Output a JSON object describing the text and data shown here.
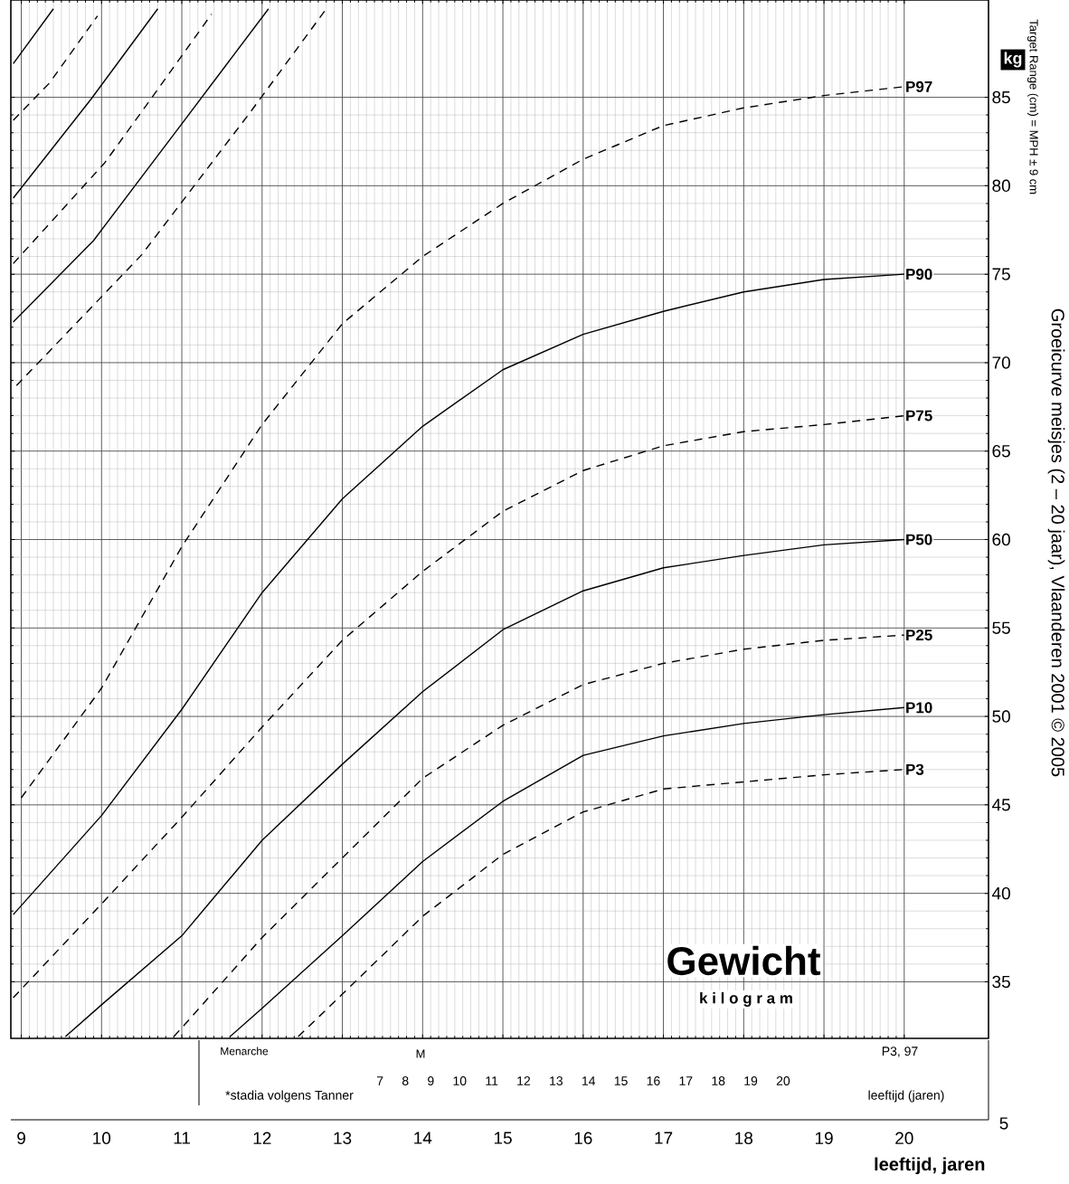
{
  "chart_data": {
    "type": "line",
    "title": "Gewicht",
    "subtitle": "k i l o g r a m",
    "xlabel": "leeftijd, jaren",
    "ylabel": "kg",
    "xlim": [
      8.87,
      21.05
    ],
    "ylim": [
      31.8,
      90.5
    ],
    "xticks": [
      9,
      10,
      11,
      12,
      13,
      14,
      15,
      16,
      17,
      18,
      19,
      20
    ],
    "yticks": [
      35,
      40,
      45,
      50,
      55,
      60,
      65,
      70,
      75,
      80,
      85
    ],
    "grid": true,
    "marker": "none",
    "annotations": [
      "Target Range (cm) = MPH ± 9 cm",
      "Groeicurve meisjes (2 – 20 jaar), Vlaanderen 2001 © 2005",
      "Menarche",
      "M",
      "7 8 9 10 11 12 13 14 15 16 17 18 19 20",
      "*stadia volgens Tanner",
      "leeftijd (jaren)",
      "P3, 97",
      "5"
    ],
    "series": [
      {
        "name": "P97",
        "color": "#000000",
        "line_style": "dashed",
        "x": [
          9,
          10,
          11,
          12,
          13,
          14,
          15,
          16,
          17,
          18,
          19,
          20
        ],
        "values": [
          45.4,
          51.6,
          59.6,
          66.5,
          72.2,
          76.0,
          79.0,
          81.5,
          83.4,
          84.4,
          85.1,
          85.6
        ]
      },
      {
        "name": "P90",
        "color": "#000000",
        "line_style": "solid",
        "x": [
          8.9,
          10,
          11,
          12,
          13,
          14,
          15,
          16,
          17,
          18,
          19,
          20
        ],
        "values": [
          38.8,
          44.4,
          50.4,
          57.0,
          62.3,
          66.4,
          69.6,
          71.6,
          72.9,
          74.0,
          74.7,
          75.0
        ]
      },
      {
        "name": "P75",
        "color": "#000000",
        "line_style": "dashed",
        "x": [
          8.9,
          10,
          11,
          12,
          13,
          14,
          15,
          16,
          17,
          18,
          19,
          20
        ],
        "values": [
          34.1,
          39.4,
          44.3,
          49.4,
          54.3,
          58.2,
          61.6,
          63.9,
          65.3,
          66.1,
          66.5,
          67.0
        ]
      },
      {
        "name": "P50",
        "color": "#000000",
        "line_style": "solid",
        "x": [
          9.55,
          10,
          11,
          12,
          13,
          14,
          15,
          16,
          17,
          18,
          19,
          20
        ],
        "values": [
          31.9,
          33.7,
          37.6,
          43.0,
          47.3,
          51.4,
          54.9,
          57.1,
          58.4,
          59.1,
          59.7,
          60.0
        ]
      },
      {
        "name": "P25",
        "color": "#000000",
        "line_style": "dashed",
        "x": [
          10.9,
          11,
          12,
          13,
          14,
          15,
          16,
          17,
          18,
          19,
          20
        ],
        "values": [
          31.9,
          32.4,
          37.5,
          42.0,
          46.5,
          49.5,
          51.8,
          53.0,
          53.8,
          54.3,
          54.6
        ]
      },
      {
        "name": "P10",
        "color": "#000000",
        "line_style": "solid",
        "x": [
          11.6,
          12,
          13,
          14,
          15,
          16,
          17,
          18,
          19,
          20
        ],
        "values": [
          31.9,
          33.5,
          37.6,
          41.8,
          45.2,
          47.8,
          48.9,
          49.6,
          50.1,
          50.5
        ]
      },
      {
        "name": "P3",
        "color": "#000000",
        "line_style": "dashed",
        "x": [
          12.45,
          13,
          14,
          15,
          16,
          17,
          18,
          19,
          20
        ],
        "values": [
          31.9,
          34.3,
          38.7,
          42.2,
          44.6,
          45.9,
          46.3,
          46.7,
          47.0
        ]
      },
      {
        "color": "#000000",
        "line_style": "solid",
        "x": [
          8.9,
          9.4
        ],
        "values": [
          86.9,
          90.0
        ]
      },
      {
        "color": "#000000",
        "line_style": "dashed",
        "x": [
          8.9,
          9.35,
          9.95
        ],
        "values": [
          83.7,
          85.8,
          89.6
        ]
      },
      {
        "color": "#000000",
        "line_style": "solid",
        "x": [
          8.9,
          9.87,
          10.7
        ],
        "values": [
          79.3,
          84.9,
          90.0
        ]
      },
      {
        "color": "#000000",
        "line_style": "dashed",
        "x": [
          8.9,
          10.04,
          10.63,
          11.37
        ],
        "values": [
          75.6,
          81.3,
          85.0,
          89.7
        ]
      },
      {
        "color": "#000000",
        "line_style": "solid",
        "x": [
          8.9,
          9.9,
          11.0,
          12.08
        ],
        "values": [
          72.3,
          76.9,
          83.5,
          90.0
        ]
      },
      {
        "color": "#000000",
        "line_style": "dashed",
        "x": [
          8.94,
          10.1,
          10.5,
          11.86,
          12.8
        ],
        "values": [
          68.7,
          74.2,
          76.1,
          84.2,
          90.0
        ]
      }
    ]
  }
}
